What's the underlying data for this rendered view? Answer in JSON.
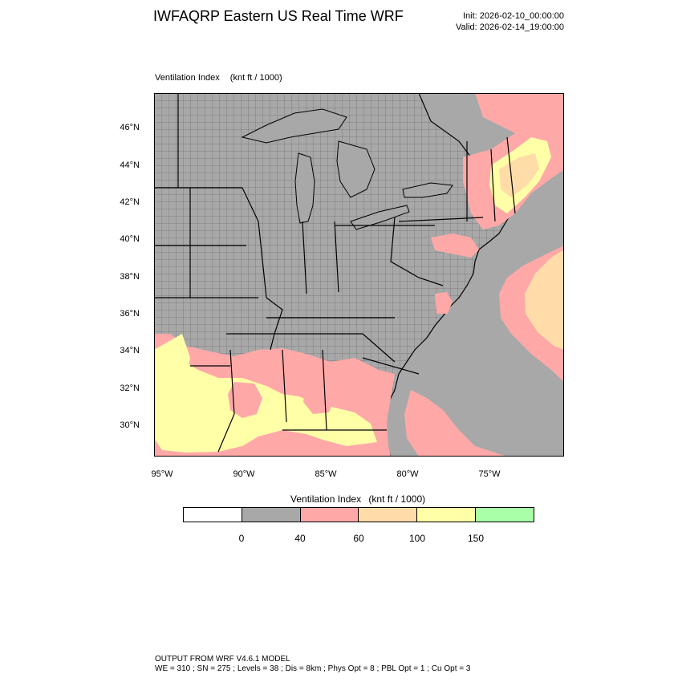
{
  "title": "IWFAQRP Eastern US Real Time WRF",
  "init": "Init: 2026-02-10_00:00:00",
  "valid": "Valid: 2026-02-14_19:00:00",
  "plot": {
    "field": "Ventilation Index",
    "units": "(knt ft / 1000)"
  },
  "latitude_labels": [
    "46°N",
    "44°N",
    "42°N",
    "40°N",
    "38°N",
    "36°N",
    "34°N",
    "32°N",
    "30°N"
  ],
  "longitude_labels": [
    "95°W",
    "90°W",
    "85°W",
    "80°W",
    "75°W"
  ],
  "colorbar": {
    "title": "Ventilation Index",
    "units": "(knt ft / 1000)",
    "colors": [
      "#ffffff",
      "#a8a8a8",
      "#ffa8a8",
      "#ffdca8",
      "#ffffa8",
      "#a8ffa8"
    ],
    "ticks": [
      "0",
      "40",
      "60",
      "100",
      "150"
    ]
  },
  "map_colors": {
    "ocean": "#a8a8a8",
    "lakes": "#a8a8a8",
    "land_low": "#a8a8a8",
    "pink": "#ffa8a8",
    "orange": "#ffdca8",
    "yellow": "#ffffa8",
    "green": "#a8ffa8"
  },
  "footer": {
    "line1": "OUTPUT FROM WRF V4.6.1 MODEL",
    "line2": "WE = 310 ; SN = 275 ; Levels = 38 ; Dis = 8km ; Phys Opt = 8 ; PBL Opt = 1 ; Cu Opt = 3"
  }
}
